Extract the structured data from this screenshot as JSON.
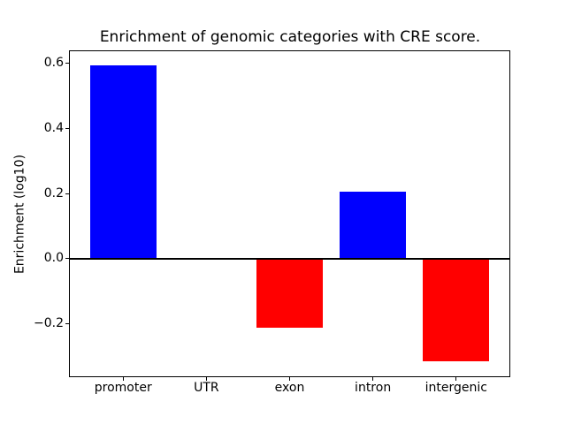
{
  "chart_data": {
    "type": "bar",
    "title": "Enrichment of genomic categories with CRE score.",
    "xlabel": "",
    "ylabel": "Enrichment (log10)",
    "categories": [
      "promoter",
      "UTR",
      "exon",
      "intron",
      "intergenic"
    ],
    "values": [
      0.595,
      0.0,
      -0.212,
      0.205,
      -0.317
    ],
    "bar_colors": [
      "#0000ff",
      "#0000ff",
      "#ff0000",
      "#0000ff",
      "#ff0000"
    ],
    "positive_color": "#0000ff",
    "negative_color": "#ff0000",
    "ylim": [
      -0.362,
      0.638
    ],
    "xlim": [
      -0.64,
      4.64
    ],
    "bar_width": 0.8,
    "yticks": [
      {
        "value": 0.6,
        "label": "0.6"
      },
      {
        "value": 0.4,
        "label": "0.4"
      },
      {
        "value": 0.2,
        "label": "0.2"
      },
      {
        "value": 0.0,
        "label": "0.0"
      },
      {
        "value": -0.2,
        "label": "−0.2"
      }
    ],
    "baseline": 0.0,
    "baseline_color": "#000000",
    "grid": false,
    "legend": null,
    "background": "#ffffff",
    "spine_color": "#000000"
  }
}
